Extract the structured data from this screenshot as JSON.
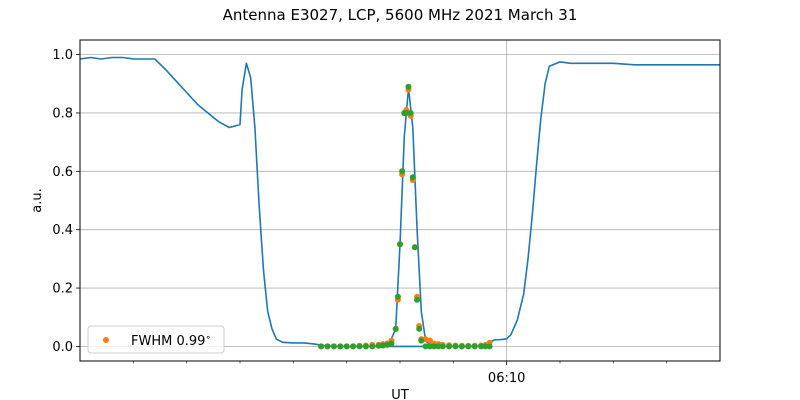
{
  "chart_data": {
    "type": "line",
    "title": "Antenna E3027, LCP, 5600 MHz 2021 March 31",
    "xlabel": "UT",
    "ylabel": "a.u.",
    "ylim": [
      -0.05,
      1.05
    ],
    "xlim_minutes": [
      0,
      30
    ],
    "yticks": [
      "0.0",
      "0.2",
      "0.4",
      "0.6",
      "0.8",
      "1.0"
    ],
    "xticks_labeled": [
      {
        "minute": 20,
        "label": "06:10"
      }
    ],
    "xticks_minor_minutes": [
      2.5,
      5,
      7.5,
      10,
      12.5,
      15,
      17.5,
      22.5,
      25,
      27.5
    ],
    "grid": true,
    "legend": {
      "location": "lower-left",
      "entries": [
        "FWHM 0.99$^\\circ$"
      ]
    },
    "legend_label": "FWHM 0.99",
    "legend_label_sup": "∘",
    "colors": {
      "line": "#1f77b4",
      "fwhm": "#ff7f0e",
      "fit": "#2ca02c",
      "grid": "#b0b0b0"
    },
    "series": [
      {
        "style": "line",
        "x": [
          0,
          0.5,
          1,
          1.5,
          2,
          2.5,
          3,
          3.5,
          4,
          4.5,
          5,
          5.5,
          6,
          6.5,
          7,
          7.5,
          7.6,
          7.8,
          8,
          8.2,
          8.4,
          8.6,
          8.8,
          9,
          9.2,
          9.5,
          10,
          10.5,
          11,
          11.5,
          12,
          14,
          15,
          15.5,
          16,
          16.5,
          17,
          17.5,
          18,
          18.5,
          19,
          19.4,
          19.8,
          20,
          20.2,
          20.5,
          20.8,
          21,
          21.2,
          21.4,
          21.6,
          21.8,
          22,
          22.5,
          23,
          24,
          25,
          26,
          27,
          28,
          29,
          30
        ],
        "y": [
          0.985,
          0.99,
          0.985,
          0.99,
          0.99,
          0.985,
          0.985,
          0.985,
          0.95,
          0.91,
          0.87,
          0.83,
          0.8,
          0.77,
          0.75,
          0.76,
          0.88,
          0.97,
          0.92,
          0.75,
          0.48,
          0.26,
          0.12,
          0.06,
          0.025,
          0.014,
          0.012,
          0.012,
          0.008,
          0.002,
          0,
          0,
          0,
          0,
          0,
          0,
          0,
          0,
          0,
          0,
          0.005,
          0.022,
          0.024,
          0.026,
          0.04,
          0.09,
          0.18,
          0.3,
          0.45,
          0.62,
          0.78,
          0.9,
          0.96,
          0.975,
          0.97,
          0.97,
          0.97,
          0.965,
          0.965,
          0.965,
          0.965,
          0.965
        ]
      },
      {
        "style": "peak",
        "x": [
          14.5,
          14.8,
          15.0,
          15.2,
          15.4,
          15.6,
          15.8,
          16.0,
          16.2,
          16.4
        ],
        "y": [
          0.01,
          0.06,
          0.35,
          0.72,
          0.885,
          0.75,
          0.4,
          0.12,
          0.02,
          0.005
        ]
      },
      {
        "style": "points",
        "name": "FWHM 0.99",
        "x": [
          11.3,
          11.6,
          11.9,
          12.2,
          12.5,
          12.8,
          13.1,
          13.4,
          13.7,
          14.0,
          14.2,
          14.4,
          14.6,
          14.8,
          14.9,
          15.0,
          15.1,
          15.2,
          15.3,
          15.4,
          15.5,
          15.6,
          15.7,
          15.8,
          15.9,
          16.0,
          16.2,
          16.4,
          16.6,
          16.8,
          17.0,
          17.3,
          17.6,
          17.9,
          18.2,
          18.5,
          18.8,
          19.0,
          19.2
        ],
        "y": [
          0,
          0,
          0,
          0,
          0,
          0,
          0.002,
          0.003,
          0.005,
          0.006,
          0.008,
          0.01,
          0.02,
          0.06,
          0.16,
          0.35,
          0.59,
          0.8,
          0.81,
          0.88,
          0.79,
          0.57,
          0.34,
          0.17,
          0.07,
          0.025,
          0.025,
          0.02,
          0.01,
          0.008,
          0.005,
          0.004,
          0.003,
          0.002,
          0.002,
          0.002,
          0.003,
          0.005,
          0.012
        ]
      },
      {
        "style": "points",
        "x": [
          11.3,
          11.6,
          11.9,
          12.2,
          12.5,
          12.8,
          13.1,
          13.4,
          13.7,
          14.0,
          14.2,
          14.4,
          14.6,
          14.8,
          14.9,
          15.0,
          15.1,
          15.2,
          15.3,
          15.4,
          15.5,
          15.6,
          15.7,
          15.8,
          15.9,
          16.0,
          16.2,
          16.4,
          16.6,
          16.8,
          17.0,
          17.3,
          17.6,
          17.9,
          18.2,
          18.5,
          18.8,
          19.0,
          19.2
        ],
        "y": [
          0,
          0,
          0,
          0,
          0,
          0,
          0,
          0,
          0,
          0.002,
          0.003,
          0.005,
          0.01,
          0.06,
          0.17,
          0.35,
          0.6,
          0.8,
          0.8,
          0.89,
          0.8,
          0.58,
          0.34,
          0.16,
          0.06,
          0.02,
          0,
          0,
          0,
          0,
          0,
          0,
          0,
          0,
          0,
          0,
          0,
          0,
          0
        ]
      }
    ]
  }
}
